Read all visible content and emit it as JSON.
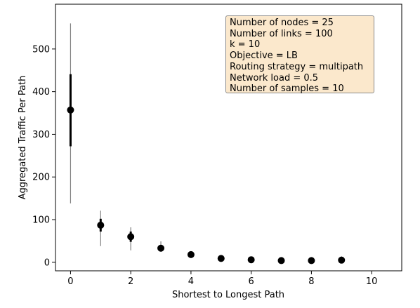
{
  "chart_data": {
    "type": "scatter",
    "xlabel": "Shortest to Longest Path",
    "ylabel": "Aggregated Traffic Per Path",
    "xlim": [
      -0.5,
      11
    ],
    "ylim": [
      -20,
      605
    ],
    "xticks": [
      0,
      2,
      4,
      6,
      8,
      10
    ],
    "yticks": [
      0,
      100,
      200,
      300,
      400,
      500
    ],
    "xtick_labels": [
      "0",
      "2",
      "4",
      "6",
      "8",
      "10"
    ],
    "ytick_labels": [
      "0",
      "100",
      "200",
      "300",
      "400",
      "500"
    ],
    "grid": false,
    "legend": "none",
    "points": [
      {
        "x": 0,
        "y": 357,
        "min": 138,
        "max": 560,
        "q1": 272,
        "q3": 441
      },
      {
        "x": 1,
        "y": 87,
        "min": 38,
        "max": 121,
        "q1": 72,
        "q3": 102
      },
      {
        "x": 2,
        "y": 60,
        "min": 28,
        "max": 82,
        "q1": 48,
        "q3": 72
      },
      {
        "x": 3,
        "y": 33,
        "min": 25,
        "max": 49,
        "q1": 28,
        "q3": 38
      },
      {
        "x": 4,
        "y": 18,
        "min": 13,
        "max": 26,
        "q1": 15,
        "q3": 22
      },
      {
        "x": 5,
        "y": 9,
        "min": 6,
        "max": 13,
        "q1": 7,
        "q3": 11
      },
      {
        "x": 6,
        "y": 6,
        "min": 4,
        "max": 8,
        "q1": 5,
        "q3": 7
      },
      {
        "x": 7,
        "y": 4,
        "min": 2,
        "max": 6,
        "q1": 3,
        "q3": 5
      },
      {
        "x": 8,
        "y": 4,
        "min": 2,
        "max": 7,
        "q1": 3,
        "q3": 5
      },
      {
        "x": 9,
        "y": 5,
        "min": 2,
        "max": 14,
        "q1": 3,
        "q3": 7
      }
    ],
    "marker_color": "#000000",
    "whisker_color": "#808080",
    "iqr_color": "#000000"
  },
  "info_box": {
    "lines": [
      "Number of nodes = 25",
      "Number of links = 100",
      "k = 10",
      "Objective = LB",
      "Routing strategy = multipath",
      "Network load = 0.5",
      "Number of samples = 10"
    ],
    "background": "#fbe8cc",
    "border": "#8a8a8a"
  }
}
